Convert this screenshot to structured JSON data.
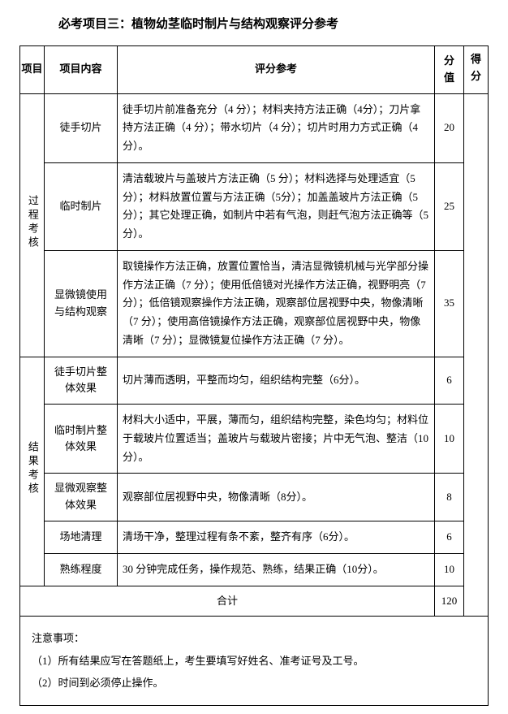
{
  "title": "必考项目三：植物幼茎临时制片与结构观察评分参考",
  "headers": {
    "category": "项目",
    "item": "项目内容",
    "detail": "评分参考",
    "score": "分值",
    "score2": "得分"
  },
  "categories": [
    {
      "name": "过程考核",
      "rows": [
        {
          "item": "徒手切片",
          "detail": "徒手切片前准备充分（4 分）；材料夹持方法正确（4分）；刀片拿持方法正确（4 分）；带水切片（4 分）；切片时用力方式正确（4 分）。",
          "score": "20"
        },
        {
          "item": "临时制片",
          "detail": "清洁载玻片与盖玻片方法正确（5 分）；材料选择与处理适宜（5 分）；材料放置位置与方法正确（5分）；加盖盖玻片方法正确（5分）；其它处理正确，如制片中若有气泡，则赶气泡方法正确等（5分）。",
          "score": "25"
        },
        {
          "item": "显微镜使用与结构观察",
          "detail": "取镜操作方法正确，放置位置恰当，清洁显微镜机械与光学部分操作方法正确（7 分）；使用低倍镜对光操作方法正确，视野明亮（7 分）；低倍镜观察操作方法正确，观察部位居视野中央，物像清晰（7 分）；使用高倍镜操作方法正确，观察部位居视野中央，物像清晰（7 分）；显微镜复位操作方法正确（7 分）。",
          "score": "35"
        }
      ]
    },
    {
      "name": "结果考核",
      "rows": [
        {
          "item": "徒手切片整体效果",
          "detail": "切片薄而透明，平整而均匀，组织结构完整（6分）。",
          "score": "6"
        },
        {
          "item": "临时制片整体效果",
          "detail": "材料大小适中，平展，薄而匀，组织结构完整，染色均匀；材料位于载玻片位置适当；盖玻片与载玻片密接；片中无气泡、整洁（10分）。",
          "score": "10"
        },
        {
          "item": "显微观察整体效果",
          "detail": "观察部位居视野中央，物像清晰（8分）。",
          "score": "8"
        },
        {
          "item": "场地清理",
          "detail": "清场干净，整理过程有条不紊，整齐有序（6分）。",
          "score": "6"
        },
        {
          "item": "熟练程度",
          "detail": "30 分钟完成任务，操作规范、熟练，结果正确（10分）。",
          "score": "10"
        }
      ]
    }
  ],
  "total": {
    "label": "合计",
    "value": "120"
  },
  "notes": {
    "heading": "注意事项：",
    "items": [
      "（1）所有结果应写在答题纸上，考生要填写好姓名、准考证号及工号。",
      "（2）时间到必须停止操作。"
    ]
  }
}
